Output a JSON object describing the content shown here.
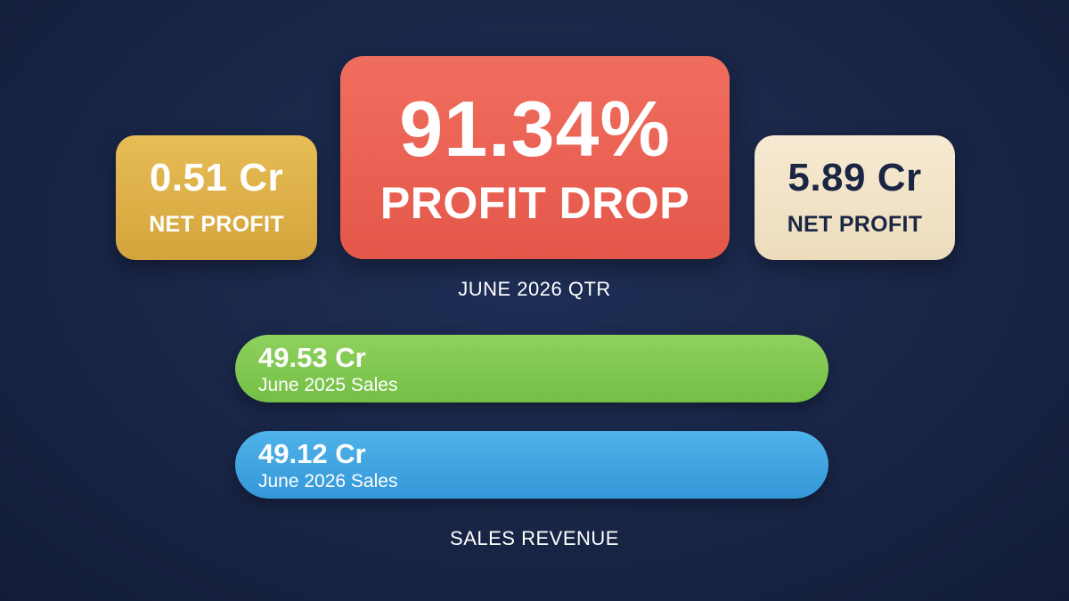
{
  "colors": {
    "background": "#1a2749",
    "left_card": "#ddb04a",
    "center_card": "#ea6253",
    "right_card": "#f1e2c6",
    "bar_2025": "#80c84f",
    "bar_2026": "#40a5e1",
    "dark_text": "#1b2644"
  },
  "left_card": {
    "value": "0.51 Cr",
    "label": "NET PROFIT"
  },
  "center_card": {
    "percent": "91.34%",
    "label": "PROFIT DROP"
  },
  "right_card": {
    "value": "5.89 Cr",
    "label": "NET PROFIT"
  },
  "period_caption": "JUNE 2026 QTR",
  "sales": {
    "items": [
      {
        "value": "49.53 Cr",
        "label": "June 2025 Sales"
      },
      {
        "value": "49.12 Cr",
        "label": "June 2026 Sales"
      }
    ],
    "caption": "SALES REVENUE"
  }
}
